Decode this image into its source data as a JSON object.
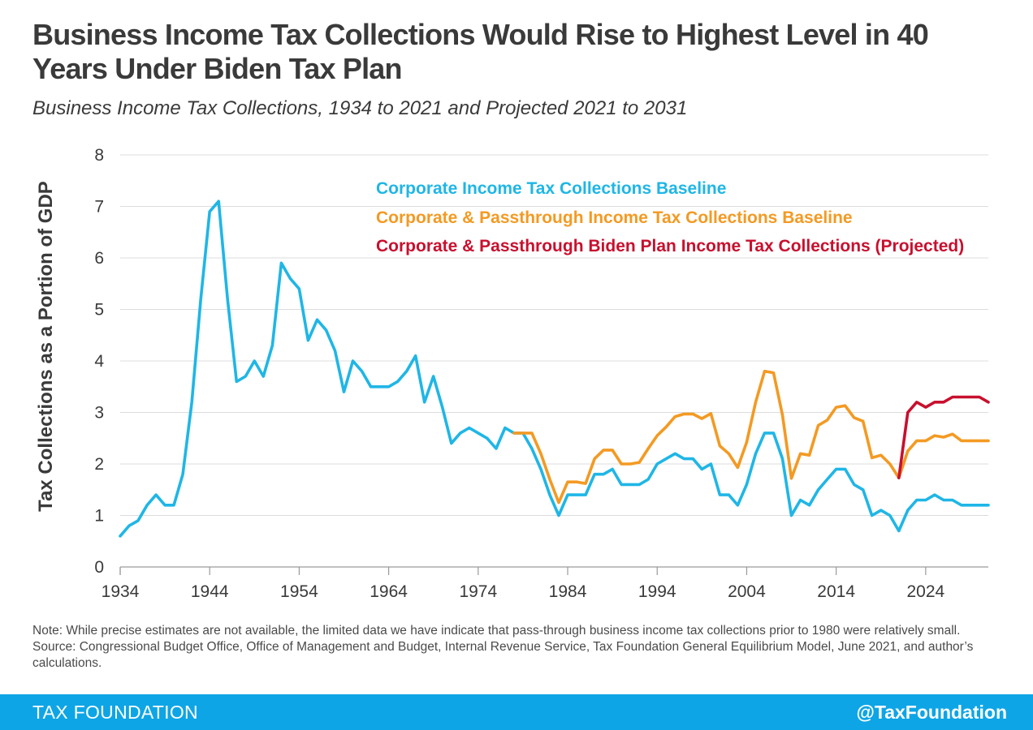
{
  "title": "Business Income Tax Collections Would Rise to Highest Level in 40 Years Under Biden Tax Plan",
  "subtitle": "Business Income Tax Collections, 1934 to 2021 and Projected 2021 to 2031",
  "note": "Note: While precise estimates are not available, the limited data we have indicate that pass-through business income tax collections prior to 1980 were relatively small.",
  "source": "Source: Congressional Budget Office, Office of Management and Budget, Internal Revenue Service, Tax Foundation General Equilibrium Model, June 2021, and author’s calculations.",
  "footer": {
    "brand": "TAX FOUNDATION",
    "handle": "@TaxFoundation"
  },
  "colors": {
    "corporate": "#1fb6e6",
    "passthrough": "#f39a23",
    "biden": "#c8102e",
    "footer": "#0ea5e6"
  },
  "chart_data": {
    "type": "line",
    "title": "Business Income Tax Collections, 1934 to 2021 and Projected 2021 to 2031",
    "xlabel": "",
    "ylabel": "Tax Collections as a Portion of GDP",
    "xlim": [
      1934,
      2031
    ],
    "ylim": [
      0,
      8
    ],
    "x_ticks": [
      "1934",
      "1944",
      "1954",
      "1964",
      "1974",
      "1984",
      "1994",
      "2004",
      "2014",
      "2024"
    ],
    "y_ticks": [
      "0",
      "1",
      "2",
      "3",
      "4",
      "5",
      "6",
      "7",
      "8"
    ],
    "grid": true,
    "legend_position": "top-right, inside plot",
    "series": [
      {
        "name": "Corporate Income Tax Collections Baseline",
        "color": "#1fb6e6",
        "x": [
          1934,
          1935,
          1936,
          1937,
          1938,
          1939,
          1940,
          1941,
          1942,
          1943,
          1944,
          1945,
          1946,
          1947,
          1948,
          1949,
          1950,
          1951,
          1952,
          1953,
          1954,
          1955,
          1956,
          1957,
          1958,
          1959,
          1960,
          1961,
          1962,
          1963,
          1964,
          1965,
          1966,
          1967,
          1968,
          1969,
          1970,
          1971,
          1972,
          1973,
          1974,
          1975,
          1976,
          1977,
          1978,
          1979,
          1980,
          1981,
          1982,
          1983,
          1984,
          1985,
          1986,
          1987,
          1988,
          1989,
          1990,
          1991,
          1992,
          1993,
          1994,
          1995,
          1996,
          1997,
          1998,
          1999,
          2000,
          2001,
          2002,
          2003,
          2004,
          2005,
          2006,
          2007,
          2008,
          2009,
          2010,
          2011,
          2012,
          2013,
          2014,
          2015,
          2016,
          2017,
          2018,
          2019,
          2020,
          2021,
          2022,
          2023,
          2024,
          2025,
          2026,
          2027,
          2028,
          2029,
          2030,
          2031
        ],
        "y": [
          0.6,
          0.8,
          0.9,
          1.2,
          1.4,
          1.2,
          1.2,
          1.8,
          3.2,
          5.2,
          6.9,
          7.1,
          5.2,
          3.6,
          3.7,
          4.0,
          3.7,
          4.3,
          5.9,
          5.6,
          5.4,
          4.4,
          4.8,
          4.6,
          4.2,
          3.4,
          4.0,
          3.8,
          3.5,
          3.5,
          3.5,
          3.6,
          3.8,
          4.1,
          3.2,
          3.7,
          3.1,
          2.4,
          2.6,
          2.7,
          2.6,
          2.5,
          2.3,
          2.7,
          2.6,
          2.6,
          2.3,
          1.9,
          1.4,
          1.0,
          1.4,
          1.4,
          1.4,
          1.8,
          1.8,
          1.9,
          1.6,
          1.6,
          1.6,
          1.7,
          2.0,
          2.1,
          2.2,
          2.1,
          2.1,
          1.9,
          2.0,
          1.4,
          1.4,
          1.2,
          1.6,
          2.2,
          2.6,
          2.6,
          2.1,
          1.0,
          1.3,
          1.2,
          1.5,
          1.7,
          1.9,
          1.9,
          1.6,
          1.5,
          1.0,
          1.1,
          1.0,
          0.7,
          1.1,
          1.3,
          1.3,
          1.4,
          1.3,
          1.3,
          1.2,
          1.2,
          1.2,
          1.2
        ]
      },
      {
        "name": "Corporate & Passthrough Income Tax Collections Baseline",
        "color": "#f39a23",
        "x": [
          1978,
          1979,
          1980,
          1981,
          1982,
          1983,
          1984,
          1985,
          1986,
          1987,
          1988,
          1989,
          1990,
          1991,
          1992,
          1993,
          1994,
          1995,
          1996,
          1997,
          1998,
          1999,
          2000,
          2001,
          2002,
          2003,
          2004,
          2005,
          2006,
          2007,
          2008,
          2009,
          2010,
          2011,
          2012,
          2013,
          2014,
          2015,
          2016,
          2017,
          2018,
          2019,
          2020,
          2021,
          2022,
          2023,
          2024,
          2025,
          2026,
          2027,
          2028,
          2029,
          2030,
          2031
        ],
        "y": [
          2.6,
          2.6,
          2.6,
          2.2,
          1.7,
          1.25,
          1.65,
          1.65,
          1.62,
          2.1,
          2.27,
          2.27,
          2.0,
          2.0,
          2.03,
          2.3,
          2.55,
          2.72,
          2.92,
          2.97,
          2.97,
          2.88,
          2.98,
          2.35,
          2.2,
          1.93,
          2.42,
          3.2,
          3.8,
          3.77,
          2.95,
          1.72,
          2.2,
          2.17,
          2.75,
          2.85,
          3.1,
          3.13,
          2.9,
          2.83,
          2.12,
          2.17,
          2.0,
          1.73,
          2.25,
          2.45,
          2.45,
          2.55,
          2.52,
          2.58,
          2.45,
          2.45,
          2.45,
          2.45
        ]
      },
      {
        "name": "Corporate & Passthrough Biden Plan Income Tax Collections (Projected)",
        "color": "#c8102e",
        "x": [
          2021,
          2022,
          2023,
          2024,
          2025,
          2026,
          2027,
          2028,
          2029,
          2030,
          2031
        ],
        "y": [
          1.73,
          3.0,
          3.2,
          3.1,
          3.2,
          3.2,
          3.3,
          3.3,
          3.3,
          3.3,
          3.2
        ]
      }
    ]
  }
}
